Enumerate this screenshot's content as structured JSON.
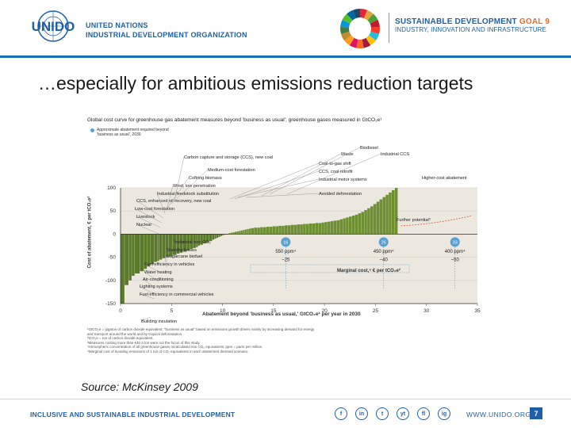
{
  "header": {
    "logo_text": "UNIDO",
    "org_line1": "UNITED NATIONS",
    "org_line2": "INDUSTRIAL DEVELOPMENT ORGANIZATION",
    "sdg_title": "SUSTAINABLE DEVELOPMENT",
    "sdg_goal": "GOAL 9",
    "sdg_subtitle": "INDUSTRY, INNOVATION AND INFRASTRUCTURE"
  },
  "slide": {
    "title": "…especially for ambitious emissions reduction targets",
    "source": "Source: McKinsey 2009",
    "page_number": "7"
  },
  "footer": {
    "tagline": "INCLUSIVE AND SUSTAINABLE INDUSTRIAL DEVELOPMENT",
    "website": "WWW.UNIDO.ORG",
    "social_icons": [
      "f",
      "in",
      "t",
      "yt",
      "fl",
      "ig"
    ]
  },
  "chart_data": {
    "type": "bar",
    "title": "Global cost curve for greenhouse gas abatement measures beyond 'business as usual'; greenhouse gases measured in GtCO₂e¹",
    "legend_note": "Approximate abatement required beyond 'business as usual', 2030",
    "xlabel": "Abatement beyond 'business as usual,' GtCO₂e¹ per year in 2030",
    "ylabel": "Cost of abatement, € per tCO₂e²",
    "xlim": [
      0,
      35
    ],
    "ylim": [
      -150,
      100
    ],
    "x_ticks": [
      "0",
      "5",
      "10",
      "15",
      "20",
      "25",
      "30",
      "35"
    ],
    "y_ticks": [
      "100",
      "50",
      "0",
      "-50",
      "-100",
      "-150"
    ],
    "bar_widths": [
      0.4,
      0.4,
      0.3,
      0.3,
      0.5,
      0.4,
      0.3,
      0.3,
      0.4,
      0.3,
      0.2,
      0.3,
      0.3,
      0.3,
      0.4,
      0.4,
      0.3,
      0.3,
      0.4,
      0.3,
      0.3,
      0.3,
      0.2,
      0.2,
      0.3,
      0.3,
      0.3,
      0.3,
      0.2,
      0.2,
      0.2,
      0.2,
      0.2,
      0.2,
      0.2,
      0.2,
      0.2,
      0.2,
      0.2,
      0.2,
      0.2,
      0.2,
      0.2,
      0.2,
      0.2,
      0.2,
      0.2,
      0.3,
      0.3,
      0.3,
      0.3,
      0.3,
      0.3,
      0.3,
      0.3,
      0.3,
      0.3,
      0.3,
      0.3,
      0.3,
      0.3,
      0.3,
      0.3,
      0.3,
      0.3,
      0.3,
      0.3,
      0.3,
      0.3,
      0.3,
      0.3,
      0.3,
      0.3,
      0.3,
      0.3,
      0.3,
      0.3,
      0.3,
      0.3,
      0.3,
      0.3,
      0.3,
      0.3,
      0.3,
      0.3,
      0.3,
      0.3,
      0.3,
      0.3,
      0.3,
      0.3,
      0.3,
      0.3,
      0.3,
      0.3,
      0.3,
      0.3,
      0.3
    ],
    "bar_values": [
      -150,
      -110,
      -100,
      -90,
      -85,
      -80,
      -75,
      -70,
      -65,
      -60,
      -58,
      -55,
      -52,
      -50,
      -48,
      -45,
      -42,
      -40,
      -38,
      -35,
      -32,
      -30,
      -28,
      -25,
      -23,
      -20,
      -18,
      -15,
      -12,
      -10,
      -8,
      -6,
      -4,
      -2,
      -1,
      0,
      2,
      3,
      4,
      5,
      6,
      7,
      8,
      9,
      10,
      11,
      12,
      13,
      14,
      14,
      15,
      15,
      16,
      16,
      17,
      17,
      18,
      18,
      19,
      19,
      20,
      20,
      21,
      21,
      22,
      22,
      23,
      23,
      24,
      24,
      25,
      26,
      27,
      28,
      29,
      30,
      32,
      34,
      36,
      38,
      40,
      42,
      45,
      48,
      52,
      56,
      60,
      65,
      70,
      75,
      80,
      85,
      90,
      95,
      100
    ],
    "measure_labels": [
      "Building insulation",
      "Fuel efficiency in commercial vehicles",
      "Lighting systems",
      "Air-conditioning",
      "Water heating",
      "Fuel efficiency in vehicles",
      "Sugarcane biofuel",
      "Standby losses",
      "Industrial non CO₂",
      "Nuclear",
      "Livestock",
      "Low-cost forestation",
      "CCS, enhanced oil recovery, new coal",
      "Industrial feedstock substitution",
      "Wind, low penetration",
      "Cofiring biomass",
      "Medium-cost forestation",
      "Carbon capture and storage (CCS), new coal",
      "Coal-to-gas shift",
      "CCS, coal retrofit",
      "Industrial motor systems",
      "Avoided deforestation",
      "Waste",
      "Biodiesel",
      "Industrial CCS",
      "Higher-cost abatement",
      "Further potential³"
    ],
    "scenarios": [
      {
        "circle": "16",
        "ppm": "550 ppm⁴",
        "cost": "~25"
      },
      {
        "circle": "26",
        "ppm": "450 ppm⁴",
        "cost": "~40"
      },
      {
        "circle": "33",
        "ppm": "400 ppm⁴",
        "cost": "~50"
      }
    ],
    "marginal_cost_label": "Marginal cost,⁵ € per tCO₂e²",
    "footnotes": [
      "¹GtCO₂e = gigaton of carbon dioxide equivalent; \"business as usual\" based on emissions growth driven mainly by increasing demand for energy",
      "  and transport around the world and by tropical deforestation.",
      "²tCO₂e = ton of carbon dioxide equivalent.",
      "³Measures costing more than €40 a ton were not the focus of this study.",
      "⁴Atmospheric concentration of all greenhouse gases recalculated into CO₂ equivalents; ppm = parts per million.",
      "⁵Marginal cost of avoiding emissions of 1 ton of CO₂ equivalents in each abatement demand scenario."
    ]
  }
}
